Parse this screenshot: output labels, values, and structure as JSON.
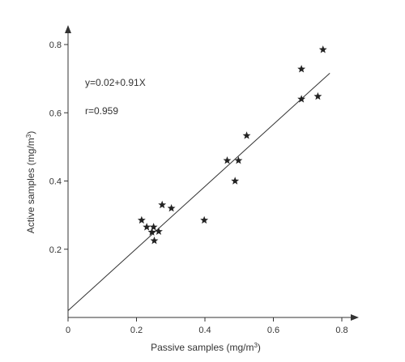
{
  "chart_data": {
    "type": "scatter",
    "title": "",
    "xlabel_base": "Passive samples (mg/m",
    "xlabel_sup": "3",
    "xlabel_end": ")",
    "ylabel_base": "Active samples (mg/m",
    "ylabel_sup": "3",
    "ylabel_end": ")",
    "xlim": [
      0,
      0.8
    ],
    "ylim": [
      0,
      0.8
    ],
    "xticks": [
      0,
      0.2,
      0.4,
      0.6,
      0.8
    ],
    "yticks": [
      0.2,
      0.4,
      0.6,
      0.8
    ],
    "xtick_labels": [
      "0",
      "0.2",
      "0.4",
      "0.6",
      "0.8"
    ],
    "ytick_labels": [
      "0.2",
      "0.4",
      "0.6",
      "0.8"
    ],
    "grid": false,
    "marker": "star",
    "marker_color": "#222222",
    "line_color": "#333333",
    "points": [
      {
        "x": 0.215,
        "y": 0.285
      },
      {
        "x": 0.23,
        "y": 0.265
      },
      {
        "x": 0.245,
        "y": 0.25
      },
      {
        "x": 0.25,
        "y": 0.265
      },
      {
        "x": 0.252,
        "y": 0.225
      },
      {
        "x": 0.265,
        "y": 0.252
      },
      {
        "x": 0.275,
        "y": 0.33
      },
      {
        "x": 0.302,
        "y": 0.32
      },
      {
        "x": 0.398,
        "y": 0.285
      },
      {
        "x": 0.465,
        "y": 0.46
      },
      {
        "x": 0.488,
        "y": 0.4
      },
      {
        "x": 0.498,
        "y": 0.46
      },
      {
        "x": 0.522,
        "y": 0.533
      },
      {
        "x": 0.682,
        "y": 0.728
      },
      {
        "x": 0.682,
        "y": 0.64
      },
      {
        "x": 0.73,
        "y": 0.648
      },
      {
        "x": 0.745,
        "y": 0.785
      }
    ],
    "regression": {
      "intercept": 0.02,
      "slope": 0.91,
      "x_range": [
        0,
        0.765
      ],
      "equation_label": "y=0.02+0.91X",
      "r_label": "r=0.959"
    }
  }
}
